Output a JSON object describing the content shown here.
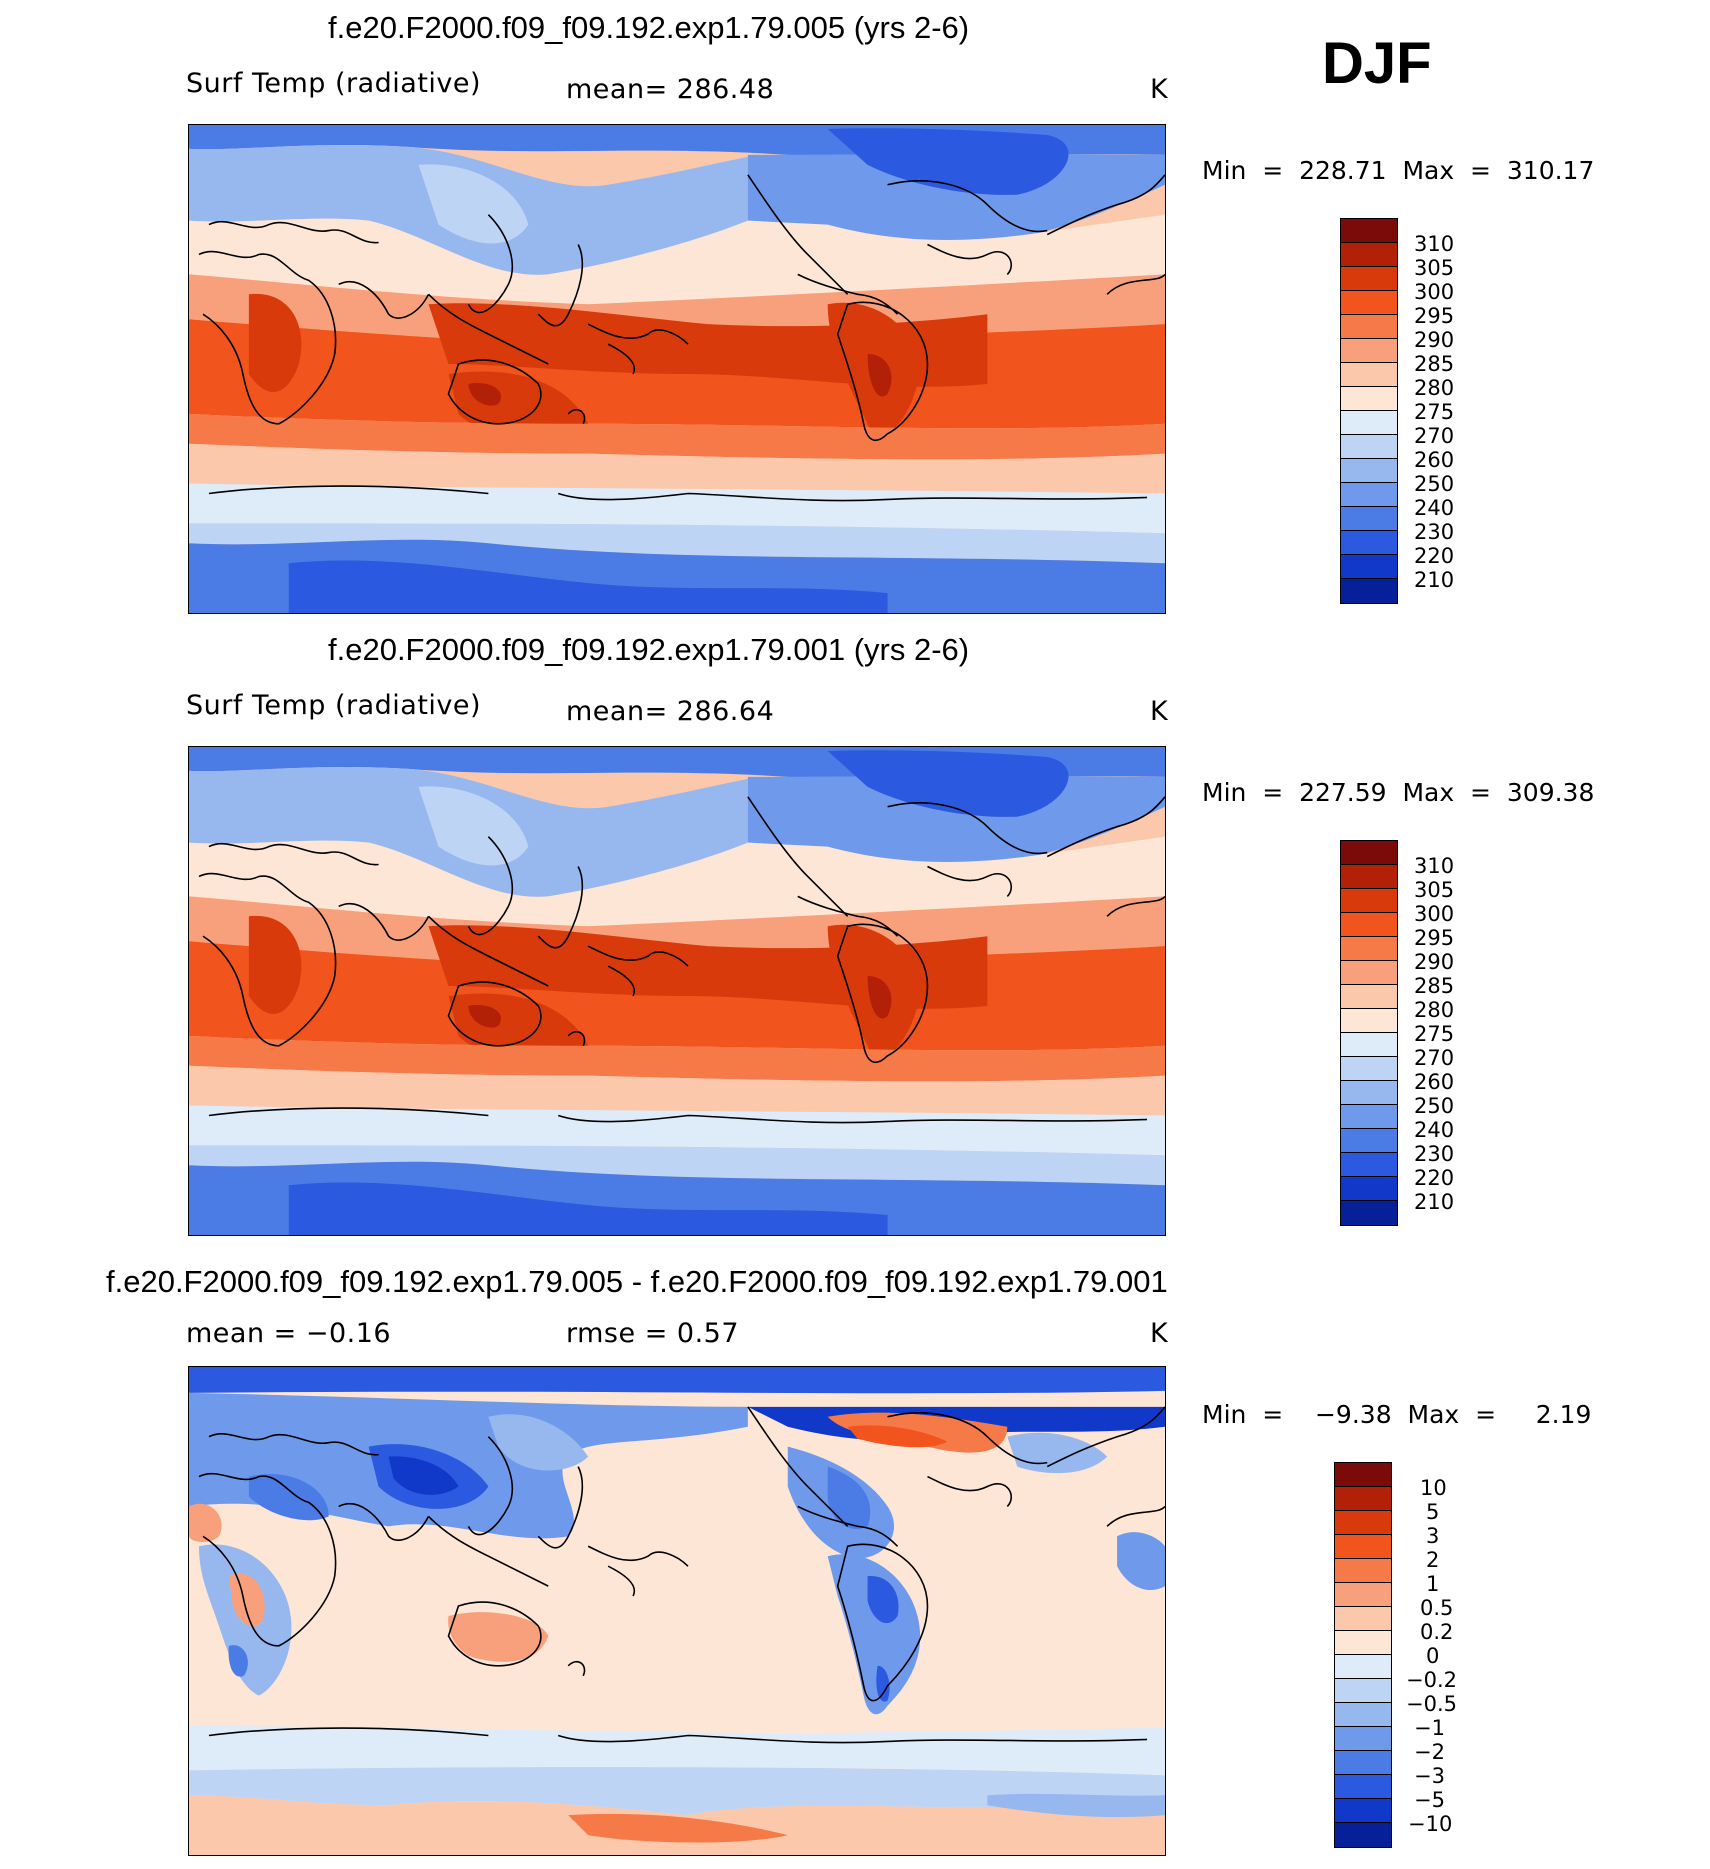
{
  "season": "DJF",
  "panels": [
    {
      "title": "f.e20.F2000.f09_f09.192.exp1.79.005 (yrs 2-6)",
      "left_label": "Surf Temp (radiative)",
      "mid_label": "mean=  286.48",
      "units": "K",
      "minmax": "Min  =  228.71  Max  =  310.17",
      "palette": "abs",
      "levels": [
        "310",
        "305",
        "300",
        "295",
        "290",
        "285",
        "280",
        "275",
        "270",
        "260",
        "250",
        "240",
        "230",
        "220",
        "210"
      ]
    },
    {
      "title": "f.e20.F2000.f09_f09.192.exp1.79.001 (yrs 2-6)",
      "left_label": "Surf Temp (radiative)",
      "mid_label": "mean=  286.64",
      "units": "K",
      "minmax": "Min  =  227.59  Max  =  309.38",
      "palette": "abs",
      "levels": [
        "310",
        "305",
        "300",
        "295",
        "290",
        "285",
        "280",
        "275",
        "270",
        "260",
        "250",
        "240",
        "230",
        "220",
        "210"
      ]
    },
    {
      "title": "f.e20.F2000.f09_f09.192.exp1.79.005 - f.e20.F2000.f09_f09.192.exp1.79.001",
      "left_label": "mean  =   −0.16",
      "mid_label": "rmse  =     0.57",
      "units": "K",
      "minmax": "Min  =    −9.38  Max  =     2.19",
      "palette": "diff",
      "levels": [
        "10",
        "5",
        "3",
        "2",
        "1",
        "0.5",
        "0.2",
        "0",
        "−0.2",
        "−0.5",
        "−1",
        "−2",
        "−3",
        "−5",
        "−10"
      ]
    }
  ],
  "colors": {
    "abs": [
      "#7a0b08",
      "#b32008",
      "#d93a0c",
      "#f1541c",
      "#f67a48",
      "#f8a07c",
      "#fbc8ac",
      "#fde6d6",
      "#deecfa",
      "#bdd4f5",
      "#97b8ef",
      "#6f99ea",
      "#4b7ce6",
      "#2b59df",
      "#1038c9",
      "#06209a"
    ],
    "diff": [
      "#7a0b08",
      "#b32008",
      "#d93a0c",
      "#f1541c",
      "#f67a48",
      "#f8a07c",
      "#fbc8ac",
      "#fde6d6",
      "#deecfa",
      "#bdd4f5",
      "#97b8ef",
      "#6f99ea",
      "#4b7ce6",
      "#2b59df",
      "#1038c9",
      "#06209a"
    ]
  }
}
